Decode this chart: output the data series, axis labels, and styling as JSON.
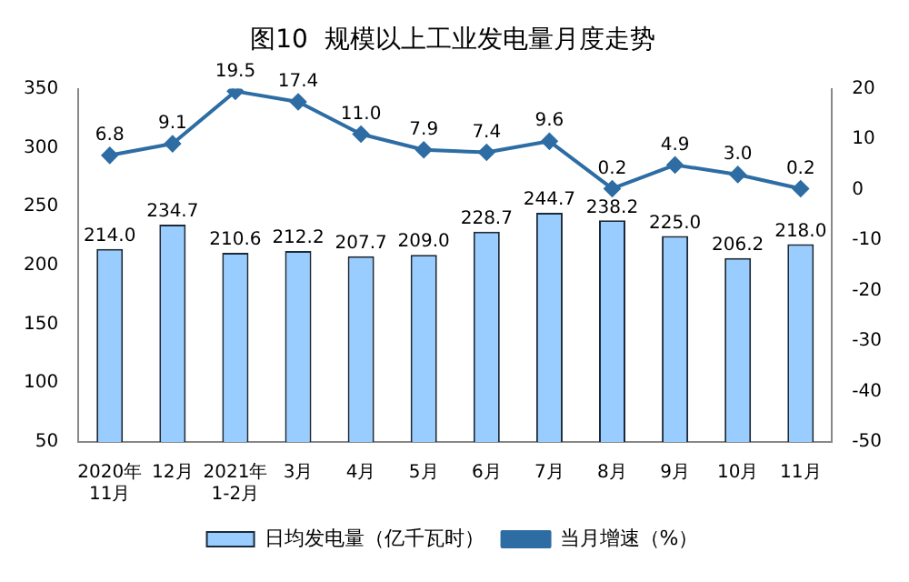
{
  "chart_data": {
    "type": "bar",
    "title": "图10  规模以上工业发电量月度走势",
    "categories": [
      "2020年\n11月",
      "12月",
      "2021年\n1-2月",
      "3月",
      "4月",
      "5月",
      "6月",
      "7月",
      "8月",
      "9月",
      "10月",
      "11月"
    ],
    "series": [
      {
        "name": "日均发电量（亿千瓦时）",
        "color": "#99ccff",
        "values": [
          214.0,
          234.7,
          210.6,
          212.2,
          207.7,
          209.0,
          228.7,
          244.7,
          238.2,
          225.0,
          206.2,
          218.0
        ],
        "value_labels": [
          "214.0",
          "234.7",
          "210.6",
          "212.2",
          "207.7",
          "209.0",
          "228.7",
          "244.7",
          "238.2",
          "225.0",
          "206.2",
          "218.0"
        ]
      },
      {
        "name": "当月增速（%）",
        "type": "line",
        "axis": "y2",
        "color": "#2e6da4",
        "marker": "diamond",
        "values": [
          6.8,
          9.1,
          19.5,
          17.4,
          11.0,
          7.9,
          7.4,
          9.6,
          0.2,
          4.9,
          3.0,
          0.2
        ],
        "value_labels": [
          "6.8",
          "9.1",
          "19.5",
          "17.4",
          "11.0",
          "7.9",
          "7.4",
          "9.6",
          "0.2",
          "4.9",
          "3.0",
          "0.2"
        ]
      }
    ],
    "ylim": [
      50,
      350
    ],
    "yticks": [
      50,
      100,
      150,
      200,
      250,
      300,
      350
    ],
    "y2lim": [
      -50,
      20
    ],
    "y2ticks": [
      -50,
      -40,
      -30,
      -20,
      -10,
      0,
      10,
      20
    ],
    "grid": false,
    "legend": "bottom"
  }
}
